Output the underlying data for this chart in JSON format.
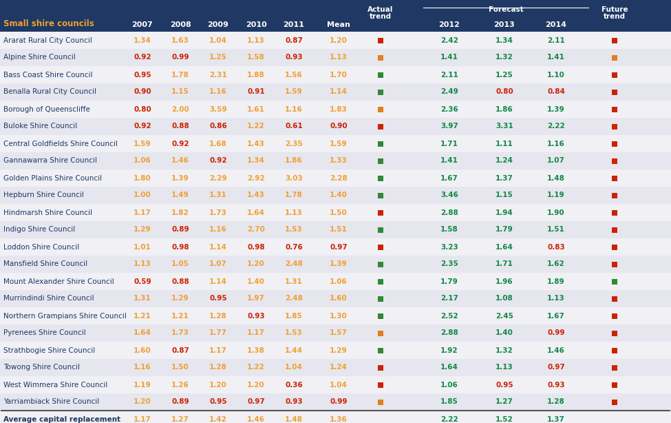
{
  "header_bg": "#1f3864",
  "rows": [
    {
      "name": "Ararat Rural City Council",
      "v2007": "1.34",
      "v2008": "1.63",
      "v2009": "1.04",
      "v2010": "1.13",
      "v2011": "0.87",
      "mean": "1.20",
      "at": "red",
      "f2012": "2.42",
      "f2013": "1.34",
      "f2014": "2.11",
      "ft": "red"
    },
    {
      "name": "Alpine Shire Council",
      "v2007": "0.92",
      "v2008": "0.99",
      "v2009": "1.25",
      "v2010": "1.58",
      "v2011": "0.93",
      "mean": "1.13",
      "at": "orange",
      "f2012": "1.41",
      "f2013": "1.32",
      "f2014": "1.41",
      "ft": "orange"
    },
    {
      "name": "Bass Coast Shire Council",
      "v2007": "0.95",
      "v2008": "1.78",
      "v2009": "2.31",
      "v2010": "1.88",
      "v2011": "1.56",
      "mean": "1.70",
      "at": "green",
      "f2012": "2.11",
      "f2013": "1.25",
      "f2014": "1.10",
      "ft": "red"
    },
    {
      "name": "Benalla Rural City Council",
      "v2007": "0.90",
      "v2008": "1.15",
      "v2009": "1.16",
      "v2010": "0.91",
      "v2011": "1.59",
      "mean": "1.14",
      "at": "green",
      "f2012": "2.49",
      "f2013": "0.80",
      "f2014": "0.84",
      "ft": "red"
    },
    {
      "name": "Borough of Queenscliffe",
      "v2007": "0.80",
      "v2008": "2.00",
      "v2009": "3.59",
      "v2010": "1.61",
      "v2011": "1.16",
      "mean": "1.83",
      "at": "orange",
      "f2012": "2.36",
      "f2013": "1.86",
      "f2014": "1.39",
      "ft": "red"
    },
    {
      "name": "Buloke Shire Council",
      "v2007": "0.92",
      "v2008": "0.88",
      "v2009": "0.86",
      "v2010": "1.22",
      "v2011": "0.61",
      "mean": "0.90",
      "at": "red",
      "f2012": "3.97",
      "f2013": "3.31",
      "f2014": "2.22",
      "ft": "red"
    },
    {
      "name": "Central Goldfields Shire Council",
      "v2007": "1.59",
      "v2008": "0.92",
      "v2009": "1.68",
      "v2010": "1.43",
      "v2011": "2.35",
      "mean": "1.59",
      "at": "green",
      "f2012": "1.71",
      "f2013": "1.11",
      "f2014": "1.16",
      "ft": "red"
    },
    {
      "name": "Gannawarra Shire Council",
      "v2007": "1.06",
      "v2008": "1.46",
      "v2009": "0.92",
      "v2010": "1.34",
      "v2011": "1.86",
      "mean": "1.33",
      "at": "green",
      "f2012": "1.41",
      "f2013": "1.24",
      "f2014": "1.07",
      "ft": "red"
    },
    {
      "name": "Golden Plains Shire Council",
      "v2007": "1.80",
      "v2008": "1.39",
      "v2009": "2.29",
      "v2010": "2.92",
      "v2011": "3.03",
      "mean": "2.28",
      "at": "green",
      "f2012": "1.67",
      "f2013": "1.37",
      "f2014": "1.48",
      "ft": "red"
    },
    {
      "name": "Hepburn Shire Council",
      "v2007": "1.00",
      "v2008": "1.49",
      "v2009": "1.31",
      "v2010": "1.43",
      "v2011": "1.78",
      "mean": "1.40",
      "at": "green",
      "f2012": "3.46",
      "f2013": "1.15",
      "f2014": "1.19",
      "ft": "red"
    },
    {
      "name": "Hindmarsh Shire Council",
      "v2007": "1.17",
      "v2008": "1.82",
      "v2009": "1.73",
      "v2010": "1.64",
      "v2011": "1.13",
      "mean": "1.50",
      "at": "red",
      "f2012": "2.88",
      "f2013": "1.94",
      "f2014": "1.90",
      "ft": "red"
    },
    {
      "name": "Indigo Shire Council",
      "v2007": "1.29",
      "v2008": "0.89",
      "v2009": "1.16",
      "v2010": "2.70",
      "v2011": "1.53",
      "mean": "1.51",
      "at": "green",
      "f2012": "1.58",
      "f2013": "1.79",
      "f2014": "1.51",
      "ft": "red"
    },
    {
      "name": "Loddon Shire Council",
      "v2007": "1.01",
      "v2008": "0.98",
      "v2009": "1.14",
      "v2010": "0.98",
      "v2011": "0.76",
      "mean": "0.97",
      "at": "red",
      "f2012": "3.23",
      "f2013": "1.64",
      "f2014": "0.83",
      "ft": "red"
    },
    {
      "name": "Mansfield Shire Council",
      "v2007": "1.13",
      "v2008": "1.05",
      "v2009": "1.07",
      "v2010": "1.20",
      "v2011": "2.48",
      "mean": "1.39",
      "at": "green",
      "f2012": "2.35",
      "f2013": "1.71",
      "f2014": "1.62",
      "ft": "red"
    },
    {
      "name": "Mount Alexander Shire Council",
      "v2007": "0.59",
      "v2008": "0.88",
      "v2009": "1.14",
      "v2010": "1.40",
      "v2011": "1.31",
      "mean": "1.06",
      "at": "green",
      "f2012": "1.79",
      "f2013": "1.96",
      "f2014": "1.89",
      "ft": "green"
    },
    {
      "name": "Murrindindi Shire Council",
      "v2007": "1.31",
      "v2008": "1.29",
      "v2009": "0.95",
      "v2010": "1.97",
      "v2011": "2.48",
      "mean": "1.60",
      "at": "green",
      "f2012": "2.17",
      "f2013": "1.08",
      "f2014": "1.13",
      "ft": "red"
    },
    {
      "name": "Northern Grampians Shire Council",
      "v2007": "1.21",
      "v2008": "1.21",
      "v2009": "1.28",
      "v2010": "0.93",
      "v2011": "1.85",
      "mean": "1.30",
      "at": "green",
      "f2012": "2.52",
      "f2013": "2.45",
      "f2014": "1.67",
      "ft": "red"
    },
    {
      "name": "Pyrenees Shire Council",
      "v2007": "1.64",
      "v2008": "1.73",
      "v2009": "1.77",
      "v2010": "1.17",
      "v2011": "1.53",
      "mean": "1.57",
      "at": "orange",
      "f2012": "2.88",
      "f2013": "1.40",
      "f2014": "0.99",
      "ft": "red"
    },
    {
      "name": "Strathbogie Shire Council",
      "v2007": "1.60",
      "v2008": "0.87",
      "v2009": "1.17",
      "v2010": "1.38",
      "v2011": "1.44",
      "mean": "1.29",
      "at": "green",
      "f2012": "1.92",
      "f2013": "1.32",
      "f2014": "1.46",
      "ft": "red"
    },
    {
      "name": "Towong Shire Council",
      "v2007": "1.16",
      "v2008": "1.50",
      "v2009": "1.28",
      "v2010": "1.22",
      "v2011": "1.04",
      "mean": "1.24",
      "at": "red",
      "f2012": "1.64",
      "f2013": "1.13",
      "f2014": "0.97",
      "ft": "red"
    },
    {
      "name": "West Wimmera Shire Council",
      "v2007": "1.19",
      "v2008": "1.26",
      "v2009": "1.20",
      "v2010": "1.20",
      "v2011": "0.36",
      "mean": "1.04",
      "at": "red",
      "f2012": "1.06",
      "f2013": "0.95",
      "f2014": "0.93",
      "ft": "red"
    },
    {
      "name": "Yarriambiack Shire Council",
      "v2007": "1.20",
      "v2008": "0.89",
      "v2009": "0.95",
      "v2010": "0.97",
      "v2011": "0.93",
      "mean": "0.99",
      "at": "orange",
      "f2012": "1.85",
      "f2013": "1.27",
      "f2014": "1.28",
      "ft": "red"
    }
  ],
  "avg": {
    "name": "Average capital replacement",
    "v2007": "1.17",
    "v2008": "1.27",
    "v2009": "1.42",
    "v2010": "1.46",
    "v2011": "1.48",
    "mean": "1.36",
    "f2012": "2.22",
    "f2013": "1.52",
    "f2014": "1.37"
  },
  "col_orange": "#f0a030",
  "col_red": "#cc2200",
  "col_green": "#227722",
  "col_teal": "#118844",
  "col_name": "#1f3864",
  "sq_red": "#cc2200",
  "sq_orange": "#e08020",
  "sq_green": "#338833"
}
